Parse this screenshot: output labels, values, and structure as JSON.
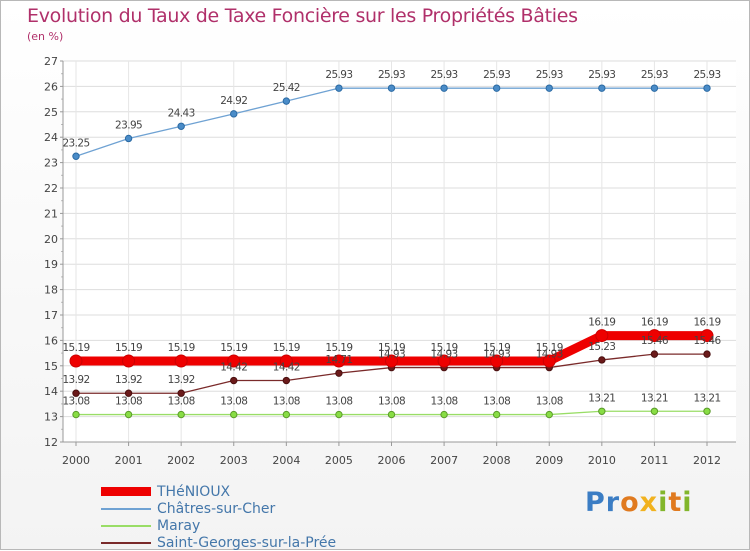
{
  "chart_data": {
    "type": "line",
    "title": "Evolution du Taux de Taxe Foncière sur les Propriétés Bâties",
    "ylabel": "(en %)",
    "xlabel": "",
    "ylim": [
      12,
      27
    ],
    "yticks": [
      "12",
      "13",
      "14",
      "15",
      "16",
      "17",
      "18",
      "19",
      "20",
      "21",
      "22",
      "23",
      "24",
      "25",
      "26",
      "27"
    ],
    "categories": [
      "2000",
      "2001",
      "2002",
      "2003",
      "2004",
      "2005",
      "2006",
      "2007",
      "2008",
      "2009",
      "2010",
      "2011",
      "2012"
    ],
    "series": [
      {
        "name": "THéNIOUX",
        "color": "#ee0000",
        "values": [
          15.19,
          15.19,
          15.19,
          15.19,
          15.19,
          15.19,
          15.19,
          15.19,
          15.19,
          15.19,
          16.19,
          16.19,
          16.19
        ],
        "labels": [
          "15.19",
          "15.19",
          "15.19",
          "15.19",
          "15.19",
          "15.19",
          "15.19",
          "15.19",
          "15.19",
          "15.19",
          "16.19",
          "16.19",
          "16.19"
        ]
      },
      {
        "name": "Châtres-sur-Cher",
        "color": "#6fa2d3",
        "values": [
          23.25,
          23.95,
          24.43,
          24.92,
          25.42,
          25.93,
          25.93,
          25.93,
          25.93,
          25.93,
          25.93,
          25.93,
          25.93
        ],
        "labels": [
          "23.25",
          "23.95",
          "24.43",
          "24.92",
          "25.42",
          "25.93",
          "25.93",
          "25.93",
          "25.93",
          "25.93",
          "25.93",
          "25.93",
          "25.93"
        ]
      },
      {
        "name": "Maray",
        "color": "#99dd66",
        "values": [
          13.08,
          13.08,
          13.08,
          13.08,
          13.08,
          13.08,
          13.08,
          13.08,
          13.08,
          13.08,
          13.21,
          13.21,
          13.21
        ],
        "labels": [
          "13.08",
          "13.08",
          "13.08",
          "13.08",
          "13.08",
          "13.08",
          "13.08",
          "13.08",
          "13.08",
          "13.08",
          "13.21",
          "13.21",
          "13.21"
        ]
      },
      {
        "name": "Saint-Georges-sur-la-Prée",
        "color": "#7a2a2a",
        "values": [
          13.92,
          13.92,
          13.92,
          14.42,
          14.42,
          14.71,
          14.93,
          14.93,
          14.93,
          14.93,
          15.23,
          15.46,
          15.46
        ],
        "labels": [
          "13.92",
          "13.92",
          "13.92",
          "14.42",
          "14.42",
          "14.71",
          "14.93",
          "14.93",
          "14.93",
          "14.93",
          "15.23",
          "15.46",
          "15.46"
        ]
      }
    ]
  },
  "logo": {
    "p1": "Pr",
    "p2": "o",
    "p3": "x",
    "p4": "i",
    "p5": "t",
    "p6": "i"
  }
}
